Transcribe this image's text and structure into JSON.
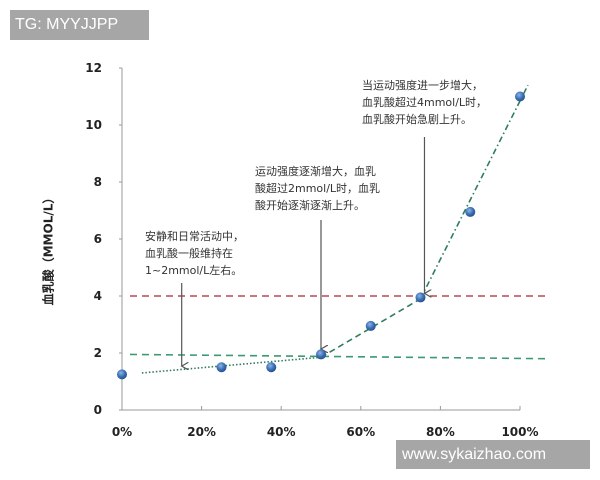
{
  "watermarks": {
    "top": "TG: MYYJJPP",
    "bottom": "www.sykaizhao.com"
  },
  "chart_data": {
    "type": "line",
    "title": "",
    "xlabel": "",
    "ylabel": "血乳酸（MMOL/L）",
    "x_ticks": [
      "0%",
      "20%",
      "40%",
      "60%",
      "80%",
      "100%"
    ],
    "y_ticks": [
      "0",
      "2",
      "4",
      "6",
      "8",
      "10",
      "12"
    ],
    "xlim": [
      0,
      100
    ],
    "ylim": [
      0,
      12
    ],
    "grid": false,
    "legend": null,
    "series": [
      {
        "name": "血乳酸",
        "x": [
          0,
          25,
          37.5,
          50,
          62.5,
          75,
          87.5,
          100
        ],
        "values": [
          1.25,
          1.5,
          1.5,
          1.95,
          2.95,
          3.95,
          6.95,
          11.0
        ],
        "marker": "circle",
        "color": "#3a6fb5"
      }
    ],
    "trend_lines": [
      {
        "name": "slow-rise",
        "from": [
          5,
          1.3
        ],
        "to": [
          50,
          1.85
        ],
        "style": "dotted",
        "color": "#2e7d5b"
      },
      {
        "name": "moderate-rise",
        "from": [
          50,
          1.85
        ],
        "to": [
          75,
          3.9
        ],
        "style": "dashed",
        "color": "#2e7d5b"
      },
      {
        "name": "sharp-rise",
        "from": [
          75,
          3.9
        ],
        "to": [
          102,
          11.4
        ],
        "style": "dash-dot",
        "color": "#2e7d5b"
      }
    ],
    "reference_lines": [
      {
        "name": "4 mmol/L threshold",
        "y": 4,
        "style": "dashed",
        "color": "#b54a55"
      },
      {
        "name": "2 mmol/L threshold",
        "y": 1.95,
        "y_end": 1.8,
        "style": "dashed",
        "color": "#3b9a70"
      }
    ],
    "annotations": [
      {
        "text": "安静和日常活动中，\n血乳酸一般维持在\n1~2mmol/L左右。",
        "arrow_to": [
          15,
          1.4
        ]
      },
      {
        "text": "运动强度逐渐增大，血乳\n酸超过2mmol/L时，血乳\n酸开始逐渐逐渐上升。",
        "arrow_to": [
          50,
          2.0
        ]
      },
      {
        "text": "当运动强度进一步增大，\n血乳酸超过4mmol/L时，\n血乳酸开始急剧上升。",
        "arrow_to": [
          76,
          3.95
        ]
      }
    ]
  }
}
